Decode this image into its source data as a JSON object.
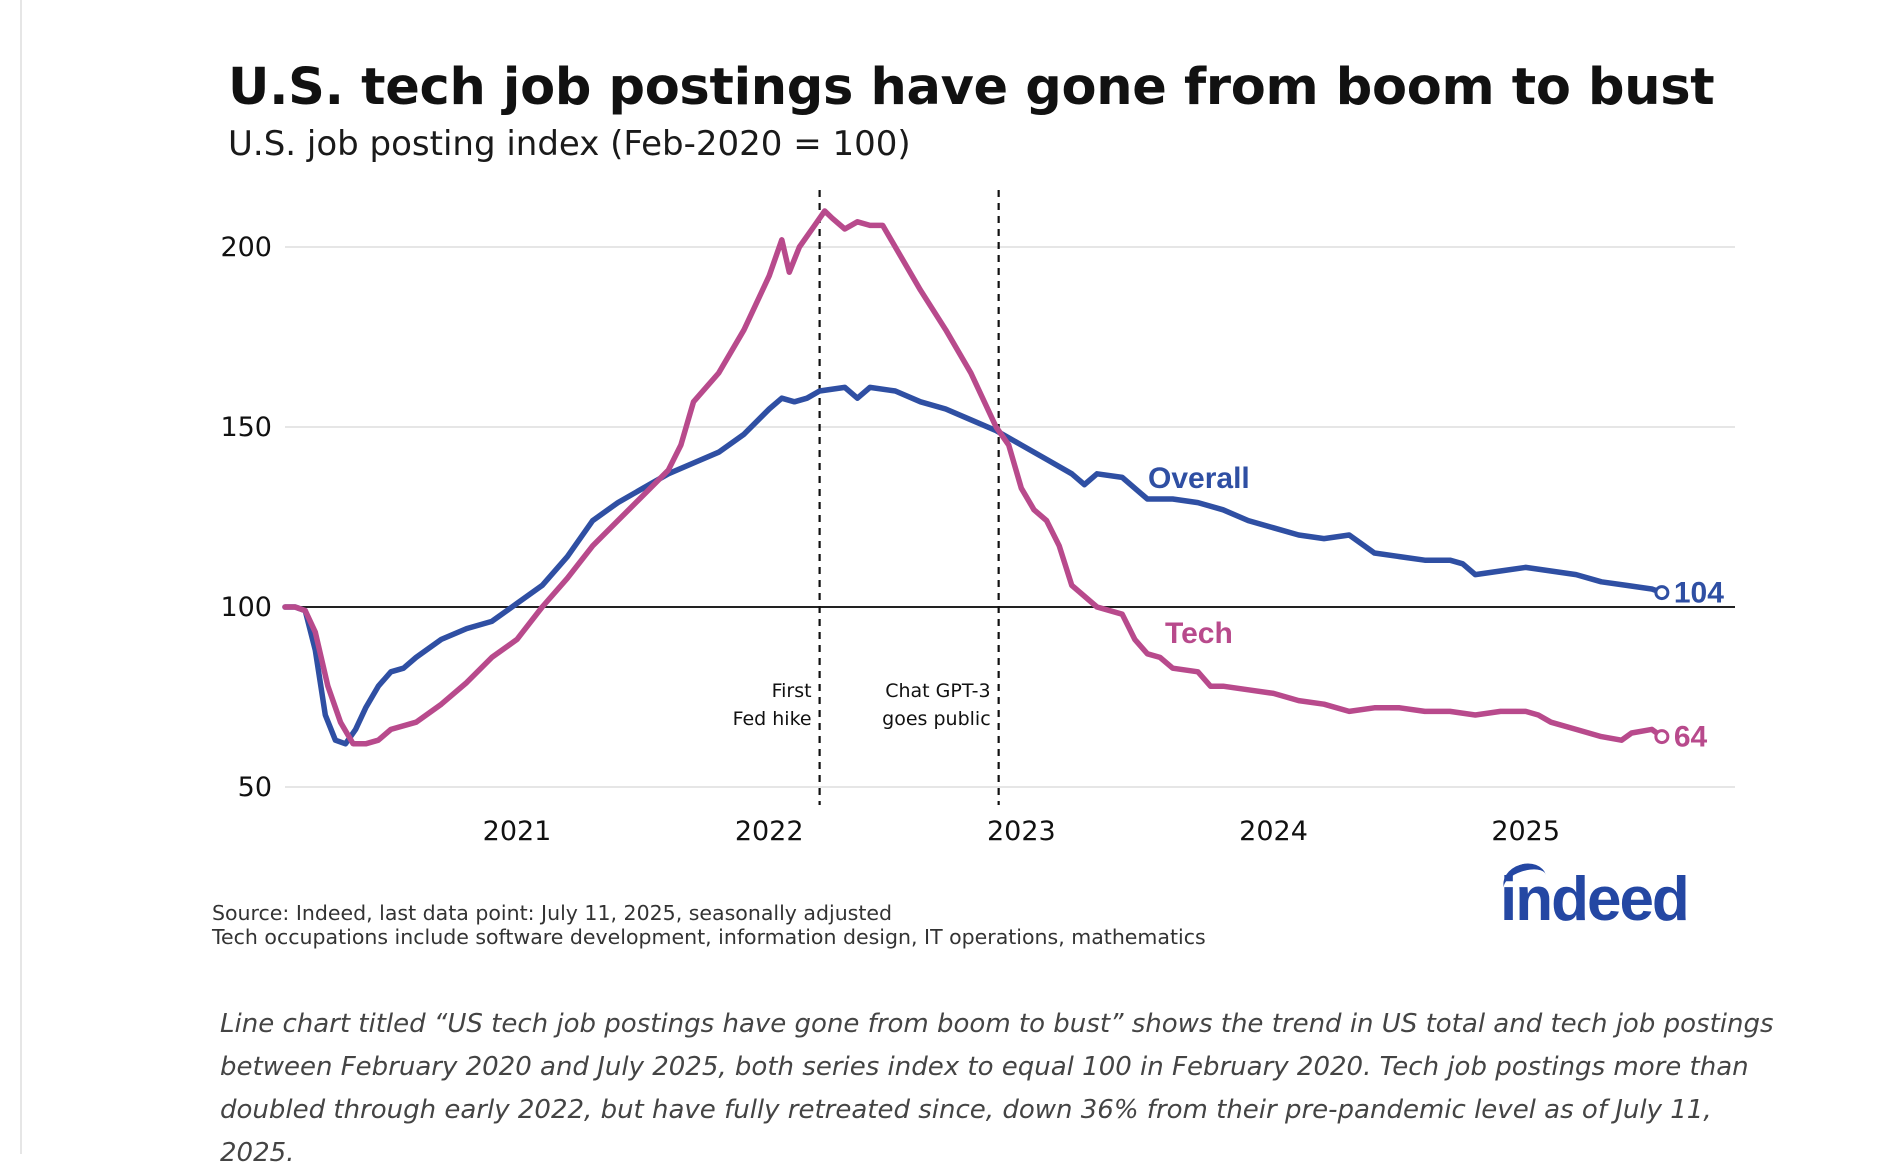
{
  "header": {
    "title": "U.S. tech job postings have gone from boom to bust",
    "subtitle": "U.S. job posting index (Feb-2020 = 100)"
  },
  "chart_data": {
    "type": "line",
    "title": "U.S. tech job postings have gone from boom to bust",
    "subtitle": "U.S. job posting index (Feb-2020 = 100)",
    "xlabel": "",
    "ylabel": "",
    "xlim": [
      2020.08,
      2025.83
    ],
    "ylim": [
      45,
      220
    ],
    "y_ticks": [
      50,
      100,
      150,
      200
    ],
    "x_ticks": [
      2021,
      2022,
      2023,
      2024,
      2025
    ],
    "grid": "horizontal",
    "reference_line": 100,
    "series": [
      {
        "name": "Overall",
        "color": "#2f4fa3",
        "end_label": "104",
        "points": [
          [
            2020.08,
            100
          ],
          [
            2020.12,
            100
          ],
          [
            2020.16,
            99
          ],
          [
            2020.2,
            88
          ],
          [
            2020.24,
            70
          ],
          [
            2020.28,
            63
          ],
          [
            2020.32,
            62
          ],
          [
            2020.36,
            66
          ],
          [
            2020.4,
            72
          ],
          [
            2020.45,
            78
          ],
          [
            2020.5,
            82
          ],
          [
            2020.55,
            83
          ],
          [
            2020.6,
            86
          ],
          [
            2020.7,
            91
          ],
          [
            2020.8,
            94
          ],
          [
            2020.9,
            96
          ],
          [
            2021.0,
            101
          ],
          [
            2021.1,
            106
          ],
          [
            2021.2,
            114
          ],
          [
            2021.3,
            124
          ],
          [
            2021.4,
            129
          ],
          [
            2021.5,
            133
          ],
          [
            2021.6,
            137
          ],
          [
            2021.7,
            140
          ],
          [
            2021.8,
            143
          ],
          [
            2021.9,
            148
          ],
          [
            2022.0,
            155
          ],
          [
            2022.05,
            158
          ],
          [
            2022.1,
            157
          ],
          [
            2022.15,
            158
          ],
          [
            2022.2,
            160
          ],
          [
            2022.3,
            161
          ],
          [
            2022.35,
            158
          ],
          [
            2022.4,
            161
          ],
          [
            2022.5,
            160
          ],
          [
            2022.6,
            157
          ],
          [
            2022.7,
            155
          ],
          [
            2022.8,
            152
          ],
          [
            2022.9,
            149
          ],
          [
            2023.0,
            145
          ],
          [
            2023.1,
            141
          ],
          [
            2023.2,
            137
          ],
          [
            2023.25,
            134
          ],
          [
            2023.3,
            137
          ],
          [
            2023.4,
            136
          ],
          [
            2023.5,
            130
          ],
          [
            2023.6,
            130
          ],
          [
            2023.7,
            129
          ],
          [
            2023.8,
            127
          ],
          [
            2023.9,
            124
          ],
          [
            2024.0,
            122
          ],
          [
            2024.1,
            120
          ],
          [
            2024.2,
            119
          ],
          [
            2024.3,
            120
          ],
          [
            2024.4,
            115
          ],
          [
            2024.5,
            114
          ],
          [
            2024.6,
            113
          ],
          [
            2024.7,
            113
          ],
          [
            2024.75,
            112
          ],
          [
            2024.8,
            109
          ],
          [
            2024.9,
            110
          ],
          [
            2025.0,
            111
          ],
          [
            2025.1,
            110
          ],
          [
            2025.2,
            109
          ],
          [
            2025.3,
            107
          ],
          [
            2025.4,
            106
          ],
          [
            2025.5,
            105
          ],
          [
            2025.54,
            104
          ]
        ]
      },
      {
        "name": "Tech",
        "color": "#b84a8c",
        "end_label": "64",
        "points": [
          [
            2020.08,
            100
          ],
          [
            2020.12,
            100
          ],
          [
            2020.16,
            99
          ],
          [
            2020.2,
            93
          ],
          [
            2020.25,
            78
          ],
          [
            2020.3,
            68
          ],
          [
            2020.35,
            62
          ],
          [
            2020.4,
            62
          ],
          [
            2020.45,
            63
          ],
          [
            2020.5,
            66
          ],
          [
            2020.6,
            68
          ],
          [
            2020.7,
            73
          ],
          [
            2020.8,
            79
          ],
          [
            2020.9,
            86
          ],
          [
            2021.0,
            91
          ],
          [
            2021.1,
            100
          ],
          [
            2021.2,
            108
          ],
          [
            2021.3,
            117
          ],
          [
            2021.4,
            124
          ],
          [
            2021.5,
            131
          ],
          [
            2021.6,
            138
          ],
          [
            2021.65,
            145
          ],
          [
            2021.7,
            157
          ],
          [
            2021.8,
            165
          ],
          [
            2021.9,
            177
          ],
          [
            2022.0,
            192
          ],
          [
            2022.05,
            202
          ],
          [
            2022.08,
            193
          ],
          [
            2022.12,
            200
          ],
          [
            2022.18,
            206
          ],
          [
            2022.22,
            210
          ],
          [
            2022.25,
            208
          ],
          [
            2022.3,
            205
          ],
          [
            2022.35,
            207
          ],
          [
            2022.4,
            206
          ],
          [
            2022.45,
            206
          ],
          [
            2022.5,
            200
          ],
          [
            2022.6,
            188
          ],
          [
            2022.7,
            177
          ],
          [
            2022.8,
            165
          ],
          [
            2022.9,
            150
          ],
          [
            2022.95,
            145
          ],
          [
            2023.0,
            133
          ],
          [
            2023.05,
            127
          ],
          [
            2023.1,
            124
          ],
          [
            2023.15,
            117
          ],
          [
            2023.2,
            106
          ],
          [
            2023.3,
            100
          ],
          [
            2023.4,
            98
          ],
          [
            2023.45,
            91
          ],
          [
            2023.5,
            87
          ],
          [
            2023.55,
            86
          ],
          [
            2023.6,
            83
          ],
          [
            2023.7,
            82
          ],
          [
            2023.75,
            78
          ],
          [
            2023.8,
            78
          ],
          [
            2023.9,
            77
          ],
          [
            2024.0,
            76
          ],
          [
            2024.1,
            74
          ],
          [
            2024.2,
            73
          ],
          [
            2024.3,
            71
          ],
          [
            2024.4,
            72
          ],
          [
            2024.5,
            72
          ],
          [
            2024.6,
            71
          ],
          [
            2024.7,
            71
          ],
          [
            2024.8,
            70
          ],
          [
            2024.9,
            71
          ],
          [
            2025.0,
            71
          ],
          [
            2025.05,
            70
          ],
          [
            2025.1,
            68
          ],
          [
            2025.2,
            66
          ],
          [
            2025.3,
            64
          ],
          [
            2025.38,
            63
          ],
          [
            2025.42,
            65
          ],
          [
            2025.5,
            66
          ],
          [
            2025.54,
            64
          ]
        ]
      }
    ],
    "annotations": [
      {
        "x": 2022.2,
        "lines": [
          "First",
          "Fed hike"
        ],
        "side": "left"
      },
      {
        "x": 2022.91,
        "lines": [
          "Chat GPT-3",
          "goes public"
        ],
        "side": "left"
      }
    ]
  },
  "footer": {
    "source_line1": "Source: Indeed, last data point: July 11, 2025, seasonally adjusted",
    "source_line2": "Tech occupations include software development, information design, IT operations, mathematics",
    "logo_text": "indeed",
    "caption": "Line chart titled “US tech job postings have gone from boom to bust” shows the trend in US total and tech job postings between February 2020 and July 2025, both series index to equal 100 in February 2020. Tech job postings more than doubled through early 2022, but have fully retreated since, down 36% from their pre-pandemic level as of July 11, 2025."
  },
  "colors": {
    "overall": "#2f4fa3",
    "tech": "#b84a8c",
    "brand": "#2447a3"
  }
}
